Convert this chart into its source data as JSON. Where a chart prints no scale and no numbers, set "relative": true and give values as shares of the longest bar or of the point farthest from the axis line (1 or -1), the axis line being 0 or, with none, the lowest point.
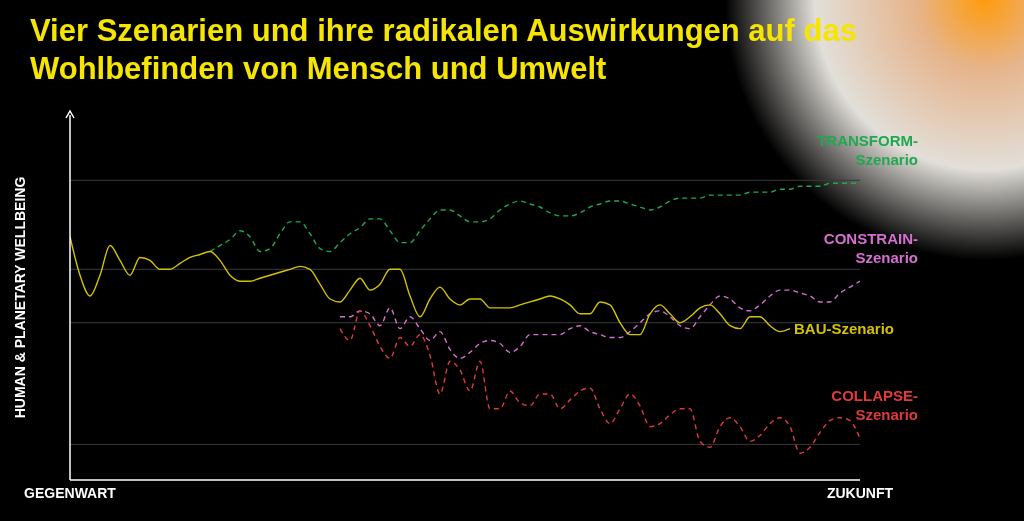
{
  "chart_data": {
    "type": "line",
    "title": "Vier Szenarien und ihre radikalen Auswirkungen auf das Wohlbefinden von Mensch und Umwelt",
    "ylabel": "HUMAN & PLANETARY WELLBEING",
    "relative": true,
    "marker": "none",
    "categories": [
      "GEGENWART",
      null,
      null,
      null,
      null,
      null,
      null,
      null,
      null,
      null,
      null,
      null,
      null,
      null,
      null,
      null,
      null,
      null,
      null,
      null,
      null,
      null,
      null,
      null,
      null,
      null,
      null,
      null,
      null,
      null,
      null,
      null,
      null,
      null,
      null,
      null,
      null,
      null,
      null,
      null,
      null,
      null,
      null,
      null,
      null,
      null,
      null,
      null,
      null,
      null,
      null,
      null,
      null,
      null,
      null,
      null,
      null,
      null,
      null,
      null,
      null,
      null,
      null,
      null,
      null,
      null,
      null,
      null,
      null,
      null,
      null,
      null,
      null,
      null,
      null,
      null,
      null,
      null,
      null,
      "ZUKUNFT"
    ],
    "series": [
      {
        "name": "TRANSFORM-Szenario",
        "color": "#1fa84f",
        "line_style": "dashed",
        "values": [
          null,
          null,
          null,
          null,
          null,
          null,
          null,
          null,
          null,
          null,
          null,
          null,
          null,
          null,
          0.77,
          0.79,
          0.81,
          0.84,
          0.82,
          0.77,
          0.78,
          0.83,
          0.87,
          0.87,
          0.83,
          0.78,
          0.77,
          0.8,
          0.83,
          0.85,
          0.88,
          0.88,
          0.84,
          0.8,
          0.8,
          0.84,
          0.88,
          0.91,
          0.91,
          0.89,
          0.87,
          0.87,
          0.88,
          0.91,
          0.93,
          0.94,
          0.93,
          0.92,
          0.9,
          0.89,
          0.89,
          0.9,
          0.92,
          0.93,
          0.94,
          0.94,
          0.93,
          0.92,
          0.91,
          0.92,
          0.94,
          0.95,
          0.95,
          0.95,
          0.96,
          0.96,
          0.96,
          0.96,
          0.97,
          0.97,
          0.97,
          0.98,
          0.98,
          0.99,
          0.99,
          0.99,
          1.0,
          1.0,
          1.0,
          1.0
        ]
      },
      {
        "name": "CONSTRAIN-Szenario",
        "color": "#d66fd0",
        "line_style": "dashed",
        "values": [
          null,
          null,
          null,
          null,
          null,
          null,
          null,
          null,
          null,
          null,
          null,
          null,
          null,
          null,
          null,
          null,
          null,
          null,
          null,
          null,
          null,
          null,
          null,
          null,
          null,
          null,
          null,
          0.55,
          0.55,
          0.57,
          0.56,
          0.52,
          0.58,
          0.51,
          0.55,
          0.51,
          0.47,
          0.5,
          0.44,
          0.41,
          0.43,
          0.46,
          0.47,
          0.46,
          0.43,
          0.45,
          0.49,
          0.49,
          0.49,
          0.49,
          0.51,
          0.52,
          0.5,
          0.49,
          0.48,
          0.48,
          0.5,
          0.53,
          0.56,
          0.57,
          0.55,
          0.52,
          0.51,
          0.55,
          0.59,
          0.62,
          0.61,
          0.58,
          0.57,
          0.59,
          0.62,
          0.64,
          0.64,
          0.63,
          0.62,
          0.6,
          0.6,
          0.63,
          0.65,
          0.67
        ]
      },
      {
        "name": "BAU-Szenario",
        "color": "#d4c200",
        "line_style": "solid",
        "values": [
          0.82,
          0.69,
          0.62,
          0.69,
          0.79,
          0.74,
          0.69,
          0.75,
          0.74,
          0.71,
          0.71,
          0.73,
          0.75,
          0.76,
          0.77,
          0.74,
          0.69,
          0.67,
          0.67,
          0.68,
          0.69,
          0.7,
          0.71,
          0.72,
          0.71,
          0.66,
          0.61,
          0.6,
          0.64,
          0.68,
          0.64,
          0.66,
          0.71,
          0.71,
          0.62,
          0.55,
          0.61,
          0.65,
          0.61,
          0.59,
          0.61,
          0.61,
          0.58,
          0.58,
          0.58,
          0.59,
          0.6,
          0.61,
          0.62,
          0.61,
          0.59,
          0.56,
          0.56,
          0.6,
          0.59,
          0.53,
          0.49,
          0.49,
          0.56,
          0.59,
          0.56,
          0.53,
          0.55,
          0.58,
          0.59,
          0.56,
          0.52,
          0.51,
          0.55,
          0.55,
          0.52,
          0.5,
          0.51,
          null,
          null,
          null,
          null,
          null,
          null,
          null
        ]
      },
      {
        "name": "COLLAPSE-Szenario",
        "color": "#e03a3a",
        "line_style": "dashed",
        "values": [
          null,
          null,
          null,
          null,
          null,
          null,
          null,
          null,
          null,
          null,
          null,
          null,
          null,
          null,
          null,
          null,
          null,
          null,
          null,
          null,
          null,
          null,
          null,
          null,
          null,
          null,
          null,
          0.51,
          0.47,
          0.57,
          0.52,
          0.45,
          0.41,
          0.48,
          0.45,
          0.49,
          0.42,
          0.29,
          0.4,
          0.37,
          0.3,
          0.4,
          0.24,
          0.24,
          0.3,
          0.26,
          0.25,
          0.29,
          0.29,
          0.24,
          0.27,
          0.3,
          0.31,
          0.24,
          0.19,
          0.24,
          0.29,
          0.25,
          0.18,
          0.19,
          0.22,
          0.24,
          0.24,
          0.13,
          0.11,
          0.18,
          0.21,
          0.18,
          0.13,
          0.15,
          0.19,
          0.21,
          0.18,
          0.09,
          0.11,
          0.16,
          0.2,
          0.21,
          0.2,
          0.14
        ]
      }
    ],
    "ref_lines": [
      {
        "axis": "y",
        "value": 1.01,
        "color": "#3a3a3a"
      },
      {
        "axis": "y",
        "value": 0.71,
        "color": "#3a3a3a"
      },
      {
        "axis": "y",
        "value": 0.53,
        "color": "#3a3a3a"
      },
      {
        "axis": "y",
        "value": 0.12,
        "color": "#3a3a3a"
      }
    ]
  }
}
